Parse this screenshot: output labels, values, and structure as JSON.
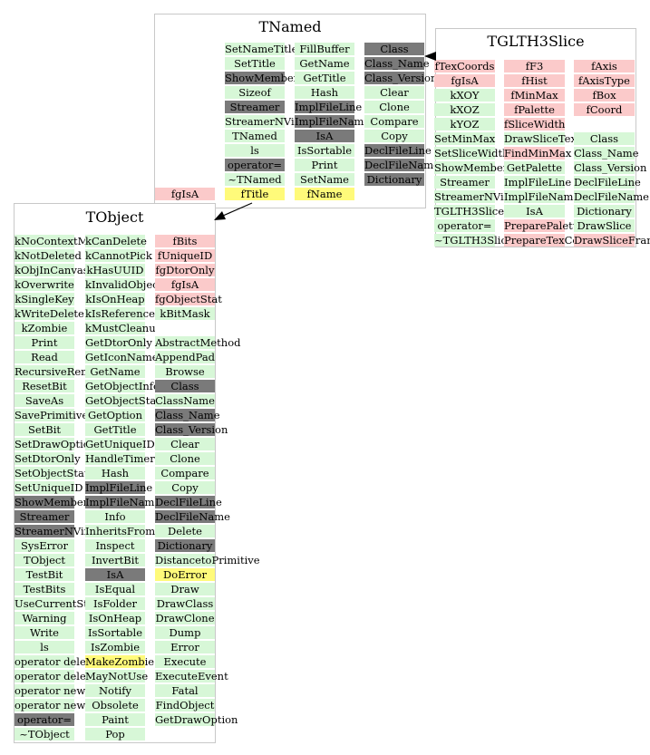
{
  "classes": {
    "tnamed": {
      "title": "TNamed",
      "columns": [
        [
          {
            "t": "SetNameTitle",
            "k": "m"
          },
          {
            "t": "SetTitle",
            "k": "m"
          },
          {
            "t": "ShowMembers",
            "k": "d"
          },
          {
            "t": "Sizeof",
            "k": "m"
          },
          {
            "t": "Streamer",
            "k": "d"
          },
          {
            "t": "StreamerNVirtual",
            "k": "m"
          },
          {
            "t": "TNamed",
            "k": "m"
          },
          {
            "t": "ls",
            "k": "m"
          },
          {
            "t": "operator=",
            "k": "d"
          },
          {
            "t": "~TNamed",
            "k": "m"
          },
          {
            "t": "fTitle",
            "k": "hl"
          }
        ],
        [
          {
            "t": "FillBuffer",
            "k": "m"
          },
          {
            "t": "GetName",
            "k": "m"
          },
          {
            "t": "GetTitle",
            "k": "m"
          },
          {
            "t": "Hash",
            "k": "m"
          },
          {
            "t": "ImplFileLine",
            "k": "d"
          },
          {
            "t": "ImplFileName",
            "k": "d"
          },
          {
            "t": "IsA",
            "k": "d"
          },
          {
            "t": "IsSortable",
            "k": "m"
          },
          {
            "t": "Print",
            "k": "m"
          },
          {
            "t": "SetName",
            "k": "m"
          },
          {
            "t": "fName",
            "k": "hl"
          }
        ],
        [
          {
            "t": "Class",
            "k": "d"
          },
          {
            "t": "Class_Name",
            "k": "d"
          },
          {
            "t": "Class_Version",
            "k": "d"
          },
          {
            "t": "Clear",
            "k": "m"
          },
          {
            "t": "Clone",
            "k": "m"
          },
          {
            "t": "Compare",
            "k": "m"
          },
          {
            "t": "Copy",
            "k": "m"
          },
          {
            "t": "DeclFileLine",
            "k": "d"
          },
          {
            "t": "DeclFileName",
            "k": "d"
          },
          {
            "t": "Dictionary",
            "k": "d"
          }
        ]
      ],
      "extra": {
        "t": "fgIsA",
        "k": "dm"
      }
    },
    "tglth3slice": {
      "title": "TGLTH3Slice",
      "columns": [
        [
          {
            "t": "fTexCoords",
            "k": "dm"
          },
          {
            "t": "fgIsA",
            "k": "dm"
          },
          {
            "t": "kXOY",
            "k": "m"
          },
          {
            "t": "kXOZ",
            "k": "m"
          },
          {
            "t": "kYOZ",
            "k": "m"
          },
          {
            "t": "SetMinMax",
            "k": "m"
          },
          {
            "t": "SetSliceWidth",
            "k": "m"
          },
          {
            "t": "ShowMembers",
            "k": "m"
          },
          {
            "t": "Streamer",
            "k": "m"
          },
          {
            "t": "StreamerNVirtual",
            "k": "m"
          },
          {
            "t": "TGLTH3Slice",
            "k": "m"
          },
          {
            "t": "operator=",
            "k": "m"
          },
          {
            "t": "~TGLTH3Slice",
            "k": "m"
          }
        ],
        [
          {
            "t": "fF3",
            "k": "dm"
          },
          {
            "t": "fHist",
            "k": "dm"
          },
          {
            "t": "fMinMax",
            "k": "dm"
          },
          {
            "t": "fPalette",
            "k": "dm"
          },
          {
            "t": "fSliceWidth",
            "k": "dm"
          },
          {
            "t": "DrawSliceTextured",
            "k": "m"
          },
          {
            "t": "FindMinMax",
            "k": "dm"
          },
          {
            "t": "GetPalette",
            "k": "m"
          },
          {
            "t": "ImplFileLine",
            "k": "m"
          },
          {
            "t": "ImplFileName",
            "k": "m"
          },
          {
            "t": "IsA",
            "k": "m"
          },
          {
            "t": "PreparePalette",
            "k": "dm"
          },
          {
            "t": "PrepareTexCoords",
            "k": "dm"
          }
        ],
        [
          {
            "t": "fAxis",
            "k": "dm"
          },
          {
            "t": "fAxisType",
            "k": "dm"
          },
          {
            "t": "fBox",
            "k": "dm"
          },
          {
            "t": "fCoord",
            "k": "dm"
          },
          {
            "t": "",
            "k": "tx"
          },
          {
            "t": "Class",
            "k": "m"
          },
          {
            "t": "Class_Name",
            "k": "m"
          },
          {
            "t": "Class_Version",
            "k": "m"
          },
          {
            "t": "DeclFileLine",
            "k": "m"
          },
          {
            "t": "DeclFileName",
            "k": "m"
          },
          {
            "t": "Dictionary",
            "k": "m"
          },
          {
            "t": "DrawSlice",
            "k": "m"
          },
          {
            "t": "DrawSliceFrame",
            "k": "dm"
          }
        ]
      ]
    },
    "tobject": {
      "title": "TObject",
      "columns": [
        [
          {
            "t": "kNoContextMenu",
            "k": "m"
          },
          {
            "t": "kNotDeleted",
            "k": "m"
          },
          {
            "t": "kObjInCanvas",
            "k": "m"
          },
          {
            "t": "kOverwrite",
            "k": "m"
          },
          {
            "t": "kSingleKey",
            "k": "m"
          },
          {
            "t": "kWriteDelete",
            "k": "m"
          },
          {
            "t": "kZombie",
            "k": "m"
          },
          {
            "t": "Print",
            "k": "m"
          },
          {
            "t": "Read",
            "k": "m"
          },
          {
            "t": "RecursiveRemove",
            "k": "m"
          },
          {
            "t": "ResetBit",
            "k": "m"
          },
          {
            "t": "SaveAs",
            "k": "m"
          },
          {
            "t": "SavePrimitive",
            "k": "m"
          },
          {
            "t": "SetBit",
            "k": "m"
          },
          {
            "t": "SetDrawOption",
            "k": "m"
          },
          {
            "t": "SetDtorOnly",
            "k": "m"
          },
          {
            "t": "SetObjectStat",
            "k": "m"
          },
          {
            "t": "SetUniqueID",
            "k": "m"
          },
          {
            "t": "ShowMembers",
            "k": "d"
          },
          {
            "t": "Streamer",
            "k": "d"
          },
          {
            "t": "StreamerNVirtual",
            "k": "d"
          },
          {
            "t": "SysError",
            "k": "m"
          },
          {
            "t": "TObject",
            "k": "m"
          },
          {
            "t": "TestBit",
            "k": "m"
          },
          {
            "t": "TestBits",
            "k": "m"
          },
          {
            "t": "UseCurrentStyle",
            "k": "m"
          },
          {
            "t": "Warning",
            "k": "m"
          },
          {
            "t": "Write",
            "k": "m"
          },
          {
            "t": "ls",
            "k": "m"
          },
          {
            "t": "operator delete",
            "k": "m"
          },
          {
            "t": "operator delete[]",
            "k": "m"
          },
          {
            "t": "operator new",
            "k": "m"
          },
          {
            "t": "operator new[]",
            "k": "m"
          },
          {
            "t": "operator=",
            "k": "d"
          },
          {
            "t": "~TObject",
            "k": "m"
          }
        ],
        [
          {
            "t": "kCanDelete",
            "k": "m"
          },
          {
            "t": "kCannotPick",
            "k": "m"
          },
          {
            "t": "kHasUUID",
            "k": "m"
          },
          {
            "t": "kInvalidObject",
            "k": "m"
          },
          {
            "t": "kIsOnHeap",
            "k": "m"
          },
          {
            "t": "kIsReferenced",
            "k": "m"
          },
          {
            "t": "kMustCleanup",
            "k": "m"
          },
          {
            "t": "GetDtorOnly",
            "k": "m"
          },
          {
            "t": "GetIconName",
            "k": "m"
          },
          {
            "t": "GetName",
            "k": "m"
          },
          {
            "t": "GetObjectInfo",
            "k": "m"
          },
          {
            "t": "GetObjectStat",
            "k": "m"
          },
          {
            "t": "GetOption",
            "k": "m"
          },
          {
            "t": "GetTitle",
            "k": "m"
          },
          {
            "t": "GetUniqueID",
            "k": "m"
          },
          {
            "t": "HandleTimer",
            "k": "m"
          },
          {
            "t": "Hash",
            "k": "m"
          },
          {
            "t": "ImplFileLine",
            "k": "d"
          },
          {
            "t": "ImplFileName",
            "k": "d"
          },
          {
            "t": "Info",
            "k": "m"
          },
          {
            "t": "InheritsFrom",
            "k": "m"
          },
          {
            "t": "Inspect",
            "k": "m"
          },
          {
            "t": "InvertBit",
            "k": "m"
          },
          {
            "t": "IsA",
            "k": "d"
          },
          {
            "t": "IsEqual",
            "k": "m"
          },
          {
            "t": "IsFolder",
            "k": "m"
          },
          {
            "t": "IsOnHeap",
            "k": "m"
          },
          {
            "t": "IsSortable",
            "k": "m"
          },
          {
            "t": "IsZombie",
            "k": "m"
          },
          {
            "t": "MakeZombie",
            "k": "hl"
          },
          {
            "t": "MayNotUse",
            "k": "m"
          },
          {
            "t": "Notify",
            "k": "m"
          },
          {
            "t": "Obsolete",
            "k": "m"
          },
          {
            "t": "Paint",
            "k": "m"
          },
          {
            "t": "Pop",
            "k": "m"
          }
        ],
        [
          {
            "t": "fBits",
            "k": "dm"
          },
          {
            "t": "fUniqueID",
            "k": "dm"
          },
          {
            "t": "fgDtorOnly",
            "k": "dm"
          },
          {
            "t": "fgIsA",
            "k": "dm"
          },
          {
            "t": "fgObjectStat",
            "k": "dm"
          },
          {
            "t": "kBitMask",
            "k": "m"
          },
          {
            "t": "",
            "k": "tx"
          },
          {
            "t": "AbstractMethod",
            "k": "m"
          },
          {
            "t": "AppendPad",
            "k": "m"
          },
          {
            "t": "Browse",
            "k": "m"
          },
          {
            "t": "Class",
            "k": "d"
          },
          {
            "t": "ClassName",
            "k": "m"
          },
          {
            "t": "Class_Name",
            "k": "d"
          },
          {
            "t": "Class_Version",
            "k": "d"
          },
          {
            "t": "Clear",
            "k": "m"
          },
          {
            "t": "Clone",
            "k": "m"
          },
          {
            "t": "Compare",
            "k": "m"
          },
          {
            "t": "Copy",
            "k": "m"
          },
          {
            "t": "DeclFileLine",
            "k": "d"
          },
          {
            "t": "DeclFileName",
            "k": "d"
          },
          {
            "t": "Delete",
            "k": "m"
          },
          {
            "t": "Dictionary",
            "k": "d"
          },
          {
            "t": "DistancetoPrimitive",
            "k": "m"
          },
          {
            "t": "DoError",
            "k": "hl"
          },
          {
            "t": "Draw",
            "k": "m"
          },
          {
            "t": "DrawClass",
            "k": "m"
          },
          {
            "t": "DrawClone",
            "k": "m"
          },
          {
            "t": "Dump",
            "k": "m"
          },
          {
            "t": "Error",
            "k": "m"
          },
          {
            "t": "Execute",
            "k": "m"
          },
          {
            "t": "ExecuteEvent",
            "k": "m"
          },
          {
            "t": "Fatal",
            "k": "m"
          },
          {
            "t": "FindObject",
            "k": "m"
          },
          {
            "t": "GetDrawOption",
            "k": "m"
          }
        ]
      ]
    }
  },
  "colors": {
    "method": "#d7f7d7",
    "dark": "#7a7a7a",
    "data_member": "#fbcaca",
    "highlight": "#fffa7a",
    "border": "#c8c8c8"
  }
}
